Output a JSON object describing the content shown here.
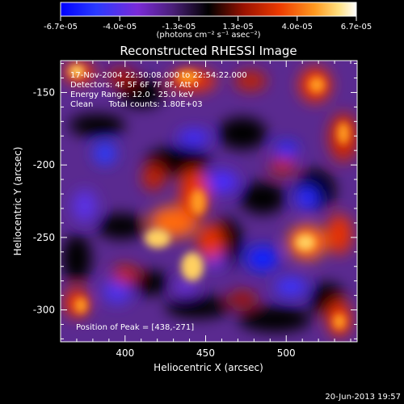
{
  "colorbar": {
    "tick_labels": [
      "-6.7e-05",
      "-4.0e-05",
      "-1.3e-05",
      "1.3e-05",
      "4.0e-05",
      "6.7e-05"
    ],
    "units_label": "(photons cm⁻² s⁻¹ asec⁻²)"
  },
  "plot": {
    "title": "Reconstructed RHESSI Image",
    "x_label": "Heliocentric X (arcsec)",
    "y_label": "Heliocentric Y (arcsec)",
    "x_ticks": [
      "400",
      "450",
      "500"
    ],
    "y_ticks": [
      "-150",
      "-200",
      "-250",
      "-300"
    ],
    "info_lines": [
      "17-Nov-2004 22:50:08.000 to 22:54:22.000",
      "Detectors: 4F 5F 6F 7F 8F, Att 0",
      "Energy Range: 12.0 - 25.0 keV",
      "Clean      Total counts: 1.80E+03"
    ],
    "peak_label": "Position of Peak = [438,-271]",
    "footer_date": "20-Jun-2013 19:57"
  },
  "colors": {
    "background": "#000000",
    "foreground": "#ffffff",
    "colormap": [
      "#0000ff",
      "#3d2bff",
      "#7a2bd9",
      "#5a2a90",
      "#000000",
      "#a01000",
      "#e83000",
      "#ff7a10",
      "#ffd060",
      "#ffffff"
    ]
  }
}
